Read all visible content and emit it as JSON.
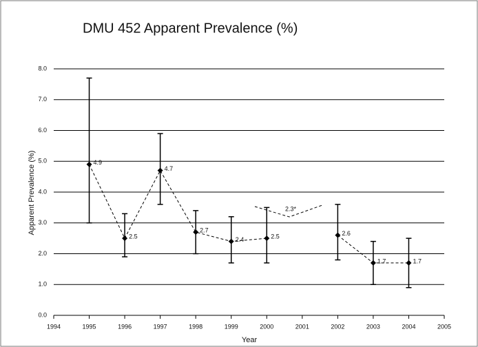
{
  "chart_data": {
    "type": "line",
    "title": "DMU 452 Apparent Prevalence (%)",
    "x_label": "Year",
    "y_label": "Apparent Prevalence (%)",
    "x": [
      1995,
      1996,
      1997,
      1998,
      1999,
      2000,
      2001,
      2002,
      2003,
      2004
    ],
    "series": [
      {
        "name": "Apparent Prevalence",
        "color": "#000000",
        "values": [
          4.9,
          2.5,
          4.7,
          2.7,
          2.4,
          2.5,
          null,
          2.6,
          1.7,
          1.7
        ],
        "lower": [
          3.0,
          1.9,
          3.6,
          2.0,
          1.7,
          1.7,
          null,
          1.8,
          1.0,
          0.9
        ],
        "upper": [
          7.7,
          3.3,
          5.9,
          3.4,
          3.2,
          3.5,
          null,
          3.6,
          2.4,
          2.5
        ]
      }
    ],
    "annotation": "2.3*",
    "xlim": [
      1994,
      2005
    ],
    "xticks": [
      1994,
      1995,
      1996,
      1997,
      1998,
      1999,
      2000,
      2001,
      2002,
      2003,
      2004,
      2005
    ],
    "ylim": [
      0,
      8
    ],
    "yticks": [
      {
        "value": 0,
        "label": "0.0"
      },
      {
        "value": 1,
        "label": "1.0"
      },
      {
        "value": 2,
        "label": "2.0"
      },
      {
        "value": 3,
        "label": "3.0"
      },
      {
        "value": 4,
        "label": "4.0"
      },
      {
        "value": 5,
        "label": "5.0"
      },
      {
        "value": 6,
        "label": "6.0"
      },
      {
        "value": 7,
        "label": "7.0"
      },
      {
        "value": 8,
        "label": "8.0"
      }
    ],
    "grid": true
  }
}
